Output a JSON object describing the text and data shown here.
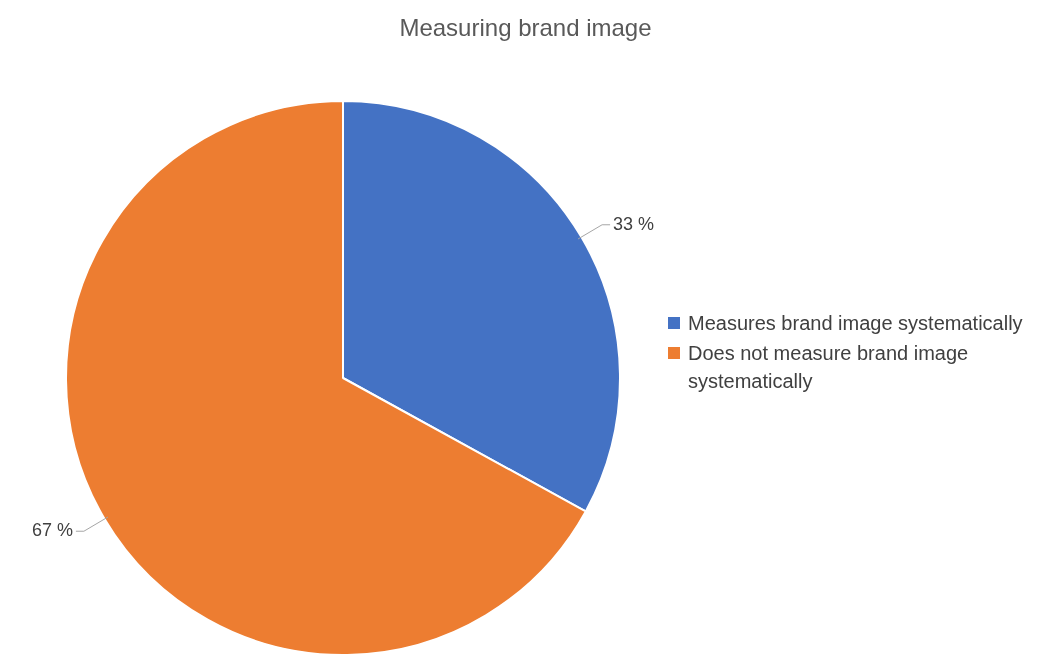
{
  "chart_data": {
    "type": "pie",
    "title": "Measuring brand image",
    "categories": [
      "Measures brand image systematically",
      "Does not measure brand image systematically"
    ],
    "values": [
      33,
      67
    ],
    "colors": [
      "#4472c4",
      "#ed7d31"
    ],
    "value_labels": [
      "33 %",
      "67 %"
    ],
    "legend": "right"
  }
}
